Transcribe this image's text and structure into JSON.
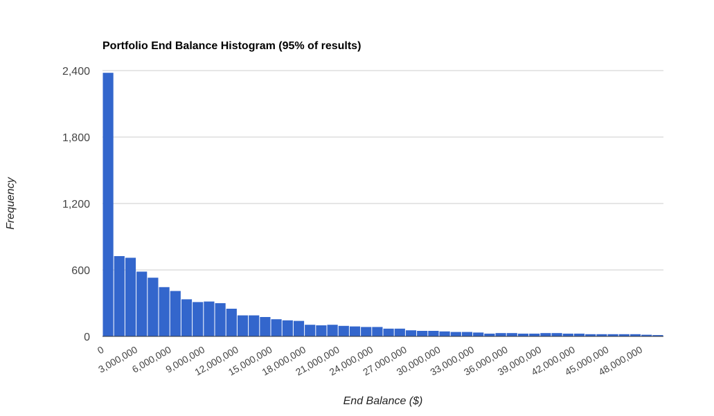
{
  "chart_data": {
    "type": "bar",
    "title": "Portfolio End Balance Histogram (95% of results)",
    "xlabel": "End Balance ($)",
    "ylabel": "Frequency",
    "y_ticks": [
      "0",
      "600",
      "1,200",
      "1,800",
      "2,400"
    ],
    "y_tick_values": [
      0,
      600,
      1200,
      1800,
      2400
    ],
    "ylim": [
      0,
      2400
    ],
    "x_ticks": [
      "0",
      "3,000,000",
      "6,000,000",
      "9,000,000",
      "12,000,000",
      "15,000,000",
      "18,000,000",
      "21,000,000",
      "24,000,000",
      "27,000,000",
      "30,000,000",
      "33,000,000",
      "36,000,000",
      "39,000,000",
      "42,000,000",
      "45,000,000",
      "48,000,000"
    ],
    "x_tick_values": [
      0,
      3000000,
      6000000,
      9000000,
      12000000,
      15000000,
      18000000,
      21000000,
      24000000,
      27000000,
      30000000,
      33000000,
      36000000,
      39000000,
      42000000,
      45000000,
      48000000
    ],
    "xlim": [
      0,
      50000000
    ],
    "bin_width": 1000000,
    "bar_color": "#3366cc",
    "grid": true,
    "legend": "none",
    "values": [
      2380,
      725,
      710,
      585,
      530,
      445,
      410,
      335,
      310,
      315,
      300,
      250,
      190,
      190,
      175,
      155,
      145,
      140,
      105,
      100,
      105,
      95,
      90,
      85,
      85,
      70,
      70,
      55,
      50,
      50,
      45,
      40,
      40,
      35,
      25,
      30,
      30,
      25,
      25,
      30,
      30,
      25,
      25,
      20,
      20,
      20,
      20,
      20,
      15,
      12
    ]
  }
}
